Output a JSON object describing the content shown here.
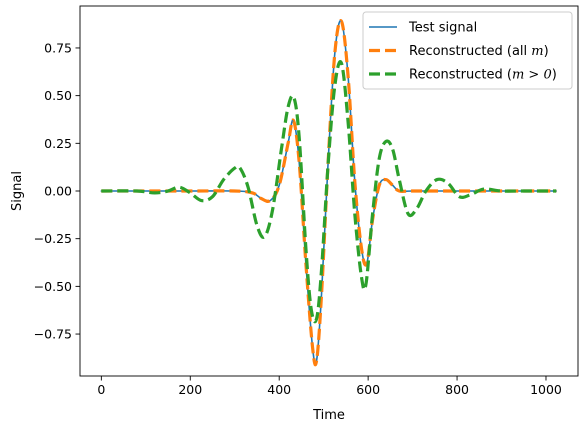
{
  "chart_data": {
    "type": "line",
    "title": "",
    "xlabel": "Time",
    "ylabel": "Signal",
    "xlim": [
      -48,
      1072
    ],
    "ylim": [
      -0.97,
      0.97
    ],
    "xticks": [
      0,
      200,
      400,
      600,
      800,
      1000
    ],
    "yticks": [
      -0.75,
      -0.5,
      -0.25,
      0.0,
      0.25,
      0.5,
      0.75
    ],
    "xtick_labels": [
      "0",
      "200",
      "400",
      "600",
      "800",
      "1000"
    ],
    "ytick_labels": [
      "−0.75",
      "−0.50",
      "−0.25",
      "0.00",
      "0.25",
      "0.50",
      "0.75"
    ],
    "grid": false,
    "legend_position": "top-right",
    "series": [
      {
        "name": "Test signal",
        "color": "#1f77b4",
        "style": "solid",
        "x": [
          0,
          200,
          300,
          340,
          360,
          380,
          400,
          420,
          432,
          445,
          460,
          475,
          484,
          495,
          510,
          525,
          540,
          555,
          570,
          585,
          597,
          610,
          625,
          640,
          655,
          670,
          700,
          800,
          1023
        ],
        "y": [
          0.0,
          0.0,
          0.0,
          -0.01,
          -0.04,
          -0.05,
          0.03,
          0.25,
          0.37,
          0.15,
          -0.38,
          -0.82,
          -0.89,
          -0.55,
          0.15,
          0.72,
          0.89,
          0.6,
          0.05,
          -0.3,
          -0.38,
          -0.15,
          0.03,
          0.06,
          0.03,
          0.0,
          0.0,
          0.0,
          0.0
        ]
      },
      {
        "name": "Reconstructed (all m)",
        "color": "#ff7f0e",
        "style": "dashed",
        "x": [
          0,
          200,
          300,
          340,
          360,
          380,
          400,
          420,
          432,
          445,
          460,
          475,
          484,
          495,
          510,
          525,
          540,
          555,
          570,
          585,
          597,
          610,
          625,
          640,
          655,
          670,
          700,
          800,
          1023
        ],
        "y": [
          0.0,
          0.0,
          0.0,
          -0.01,
          -0.04,
          -0.05,
          0.03,
          0.25,
          0.37,
          0.15,
          -0.38,
          -0.82,
          -0.89,
          -0.55,
          0.15,
          0.72,
          0.89,
          0.6,
          0.05,
          -0.3,
          -0.38,
          -0.15,
          0.03,
          0.06,
          0.03,
          0.0,
          0.0,
          0.0,
          0.0
        ]
      },
      {
        "name": "Reconstructed (m > 0)",
        "color": "#2ca02c",
        "style": "dashed",
        "x": [
          0,
          80,
          120,
          150,
          175,
          200,
          225,
          250,
          275,
          300,
          312,
          330,
          350,
          367,
          385,
          405,
          420,
          433,
          445,
          460,
          472,
          484,
          495,
          510,
          525,
          540,
          555,
          570,
          585,
          595,
          610,
          625,
          640,
          655,
          670,
          690,
          710,
          730,
          755,
          780,
          805,
          830,
          860,
          900,
          950,
          1023
        ],
        "y": [
          0.0,
          0.0,
          -0.01,
          0.0,
          0.02,
          -0.01,
          -0.05,
          -0.03,
          0.06,
          0.12,
          0.12,
          0.02,
          -0.18,
          -0.24,
          -0.1,
          0.22,
          0.44,
          0.49,
          0.28,
          -0.3,
          -0.62,
          -0.67,
          -0.42,
          0.14,
          0.55,
          0.67,
          0.36,
          -0.12,
          -0.45,
          -0.49,
          -0.12,
          0.17,
          0.26,
          0.22,
          0.06,
          -0.12,
          -0.09,
          0.0,
          0.06,
          0.04,
          -0.03,
          -0.02,
          0.01,
          0.0,
          0.0,
          0.0
        ]
      }
    ],
    "legend": [
      {
        "prefix": "Test signal",
        "math": "",
        "suffix": ""
      },
      {
        "prefix": "Reconstructed (all ",
        "math": "m",
        "suffix": ")"
      },
      {
        "prefix": "Reconstructed (",
        "math": "m > 0",
        "suffix": ")"
      }
    ]
  }
}
